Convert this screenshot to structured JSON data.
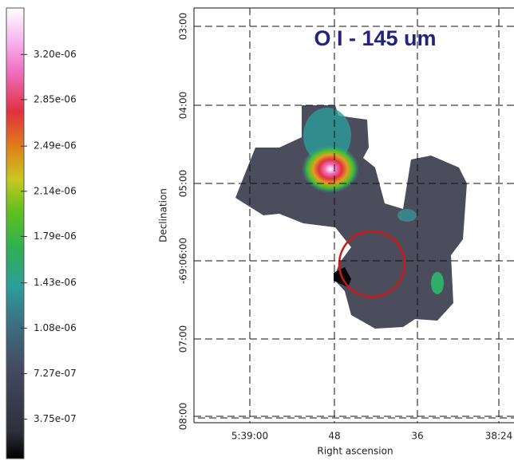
{
  "colorbar": {
    "lim": [
      6.9e-08,
      3.56e-06
    ],
    "ticks": [
      {
        "value": 3.2e-06,
        "label": "3.20e-06"
      },
      {
        "value": 2.85e-06,
        "label": "2.85e-06"
      },
      {
        "value": 2.49e-06,
        "label": "2.49e-06"
      },
      {
        "value": 2.14e-06,
        "label": "2.14e-06"
      },
      {
        "value": 1.79e-06,
        "label": "1.79e-06"
      },
      {
        "value": 1.43e-06,
        "label": "1.43e-06"
      },
      {
        "value": 1.08e-06,
        "label": "1.08e-06"
      },
      {
        "value": 7.27e-07,
        "label": "7.27e-07"
      },
      {
        "value": 3.75e-07,
        "label": "3.75e-07"
      }
    ]
  },
  "map": {
    "title": "O I - 145 um",
    "x_label": "Right ascension",
    "y_label": "Declination",
    "x_ticks": [
      "5:39:00",
      "48",
      "36",
      "38:24"
    ],
    "y_ticks": [
      "03:00",
      "04:00",
      "05:00",
      "-69:06:00",
      "07:00",
      "08:00"
    ]
  }
}
